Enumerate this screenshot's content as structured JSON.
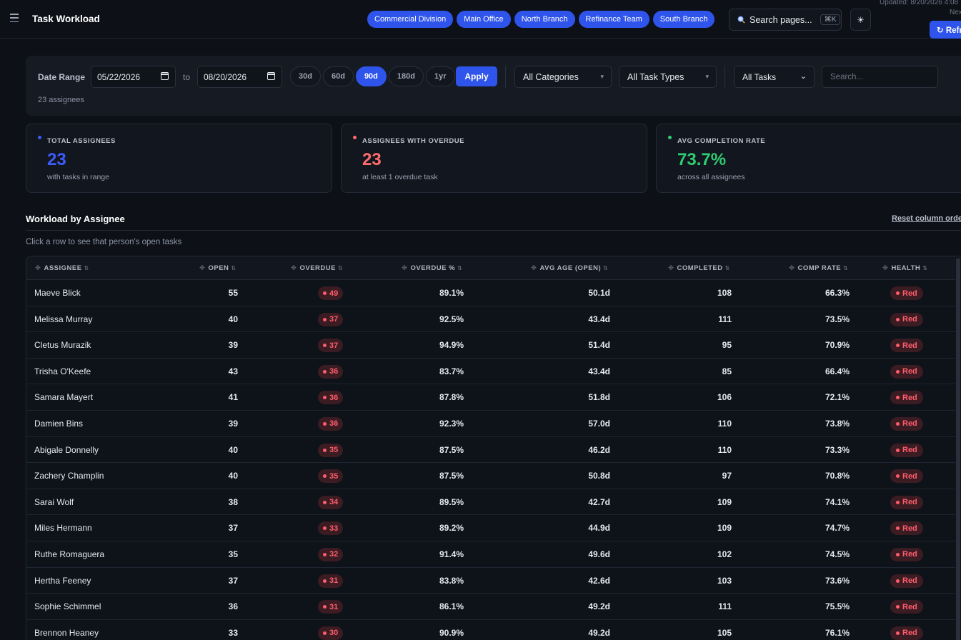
{
  "header": {
    "title": "Task Workload",
    "branches": [
      "Commercial Division",
      "Main Office",
      "North Branch",
      "Refinance Team",
      "South Branch"
    ],
    "search_label": "Search pages...",
    "search_shortcut": "⌘K",
    "theme_icon": "☀",
    "updated_text": "Updated: 8/20/2026 4:08",
    "next_text": "Nex",
    "refresh_label": "↻ Refr"
  },
  "filters": {
    "date_range_label": "Date Range",
    "start_date": "05/22/2026",
    "to_label": "to",
    "end_date": "08/20/2026",
    "ranges": [
      "30d",
      "60d",
      "90d",
      "180d",
      "1yr"
    ],
    "active_range": "90d",
    "apply_label": "Apply",
    "category_select": "All Categories",
    "task_type_select": "All Task Types",
    "task_filter_select": "All Tasks",
    "search_placeholder": "Search...",
    "assignee_count": "23 assignees"
  },
  "cards": [
    {
      "title": "TOTAL ASSIGNEES",
      "value": "23",
      "sub": "with tasks in range",
      "color": "#3b5bfd"
    },
    {
      "title": "ASSIGNEES WITH OVERDUE",
      "value": "23",
      "sub": "at least 1 overdue task",
      "color": "#ff6b6b"
    },
    {
      "title": "AVG COMPLETION RATE",
      "value": "73.7%",
      "sub": "across all assignees",
      "color": "#2ecc71"
    }
  ],
  "section": {
    "title": "Workload by Assignee",
    "reset_label": "Reset column order",
    "hint": "Click a row to see that person's open tasks"
  },
  "table": {
    "columns": [
      "ASSIGNEE",
      "OPEN",
      "OVERDUE",
      "OVERDUE %",
      "AVG AGE (OPEN)",
      "COMPLETED",
      "COMP RATE",
      "HEALTH"
    ],
    "rows": [
      {
        "name": "Maeve Blick",
        "open": "55",
        "overdue": "49",
        "overdue_pct": "89.1%",
        "avg_age": "50.1d",
        "completed": "108",
        "comp_rate": "66.3%",
        "health": "Red"
      },
      {
        "name": "Melissa Murray",
        "open": "40",
        "overdue": "37",
        "overdue_pct": "92.5%",
        "avg_age": "43.4d",
        "completed": "111",
        "comp_rate": "73.5%",
        "health": "Red"
      },
      {
        "name": "Cletus Murazik",
        "open": "39",
        "overdue": "37",
        "overdue_pct": "94.9%",
        "avg_age": "51.4d",
        "completed": "95",
        "comp_rate": "70.9%",
        "health": "Red"
      },
      {
        "name": "Trisha O'Keefe",
        "open": "43",
        "overdue": "36",
        "overdue_pct": "83.7%",
        "avg_age": "43.4d",
        "completed": "85",
        "comp_rate": "66.4%",
        "health": "Red"
      },
      {
        "name": "Samara Mayert",
        "open": "41",
        "overdue": "36",
        "overdue_pct": "87.8%",
        "avg_age": "51.8d",
        "completed": "106",
        "comp_rate": "72.1%",
        "health": "Red"
      },
      {
        "name": "Damien Bins",
        "open": "39",
        "overdue": "36",
        "overdue_pct": "92.3%",
        "avg_age": "57.0d",
        "completed": "110",
        "comp_rate": "73.8%",
        "health": "Red"
      },
      {
        "name": "Abigale Donnelly",
        "open": "40",
        "overdue": "35",
        "overdue_pct": "87.5%",
        "avg_age": "46.2d",
        "completed": "110",
        "comp_rate": "73.3%",
        "health": "Red"
      },
      {
        "name": "Zachery Champlin",
        "open": "40",
        "overdue": "35",
        "overdue_pct": "87.5%",
        "avg_age": "50.8d",
        "completed": "97",
        "comp_rate": "70.8%",
        "health": "Red"
      },
      {
        "name": "Sarai Wolf",
        "open": "38",
        "overdue": "34",
        "overdue_pct": "89.5%",
        "avg_age": "42.7d",
        "completed": "109",
        "comp_rate": "74.1%",
        "health": "Red"
      },
      {
        "name": "Miles Hermann",
        "open": "37",
        "overdue": "33",
        "overdue_pct": "89.2%",
        "avg_age": "44.9d",
        "completed": "109",
        "comp_rate": "74.7%",
        "health": "Red"
      },
      {
        "name": "Ruthe Romaguera",
        "open": "35",
        "overdue": "32",
        "overdue_pct": "91.4%",
        "avg_age": "49.6d",
        "completed": "102",
        "comp_rate": "74.5%",
        "health": "Red"
      },
      {
        "name": "Hertha Feeney",
        "open": "37",
        "overdue": "31",
        "overdue_pct": "83.8%",
        "avg_age": "42.6d",
        "completed": "103",
        "comp_rate": "73.6%",
        "health": "Red"
      },
      {
        "name": "Sophie Schimmel",
        "open": "36",
        "overdue": "31",
        "overdue_pct": "86.1%",
        "avg_age": "49.2d",
        "completed": "111",
        "comp_rate": "75.5%",
        "health": "Red"
      },
      {
        "name": "Brennon Heaney",
        "open": "33",
        "overdue": "30",
        "overdue_pct": "90.9%",
        "avg_age": "49.2d",
        "completed": "105",
        "comp_rate": "76.1%",
        "health": "Red"
      }
    ]
  }
}
